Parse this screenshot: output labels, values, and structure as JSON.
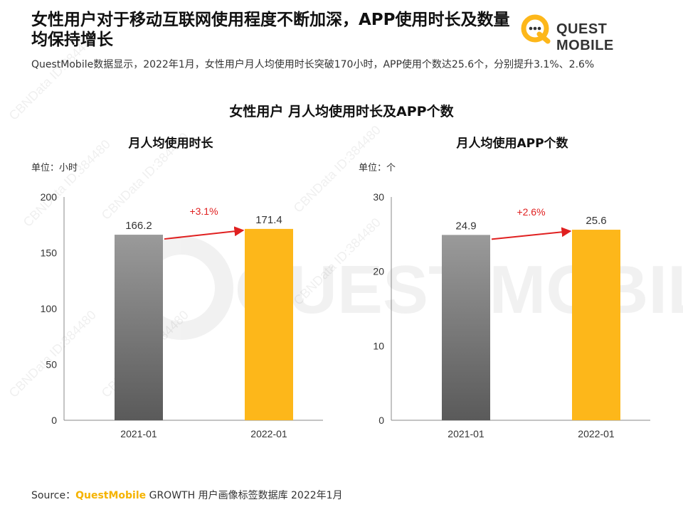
{
  "header": {
    "title": "女性用户对于移动互联网使用程度不断加深，APP使用时长及数量均保持增长",
    "subtitle": "QuestMobile数据显示，2022年1月，女性用户月人均使用时长突破170小时，APP使用个数达25.6个，分别提升3.1%、2.6%"
  },
  "logo": {
    "text": "QUEST MOBILE"
  },
  "section_title": "女性用户 月人均使用时长及APP个数",
  "colors": {
    "accent": "#FDB71A",
    "gray_top": "#9a9a9a",
    "gray_bottom": "#5a5a5a",
    "arrow": "#e02020"
  },
  "watermark": {
    "text": "CBNData ID:384480",
    "logo_text": "QUEST MOBILE"
  },
  "chart_data": [
    {
      "type": "bar",
      "title": "月人均使用时长",
      "unit_label": "单位：小时",
      "categories": [
        "2021-01",
        "2022-01"
      ],
      "values": [
        166.2,
        171.4
      ],
      "value_labels": [
        "166.2",
        "171.4"
      ],
      "yticks": [
        "0",
        "50",
        "100",
        "150",
        "200"
      ],
      "ylim": [
        0,
        200
      ],
      "growth_label": "+3.1%",
      "grid": false
    },
    {
      "type": "bar",
      "title": "月人均使用APP个数",
      "unit_label": "单位：个",
      "categories": [
        "2021-01",
        "2022-01"
      ],
      "values": [
        24.9,
        25.6
      ],
      "value_labels": [
        "24.9",
        "25.6"
      ],
      "yticks": [
        "0",
        "10",
        "20",
        "30"
      ],
      "ylim": [
        0,
        30
      ],
      "growth_label": "+2.6%",
      "grid": false
    }
  ],
  "source": {
    "prefix": "Source：",
    "brand": "QuestMobile",
    "rest": " GROWTH 用户画像标签数据库 2022年1月"
  }
}
